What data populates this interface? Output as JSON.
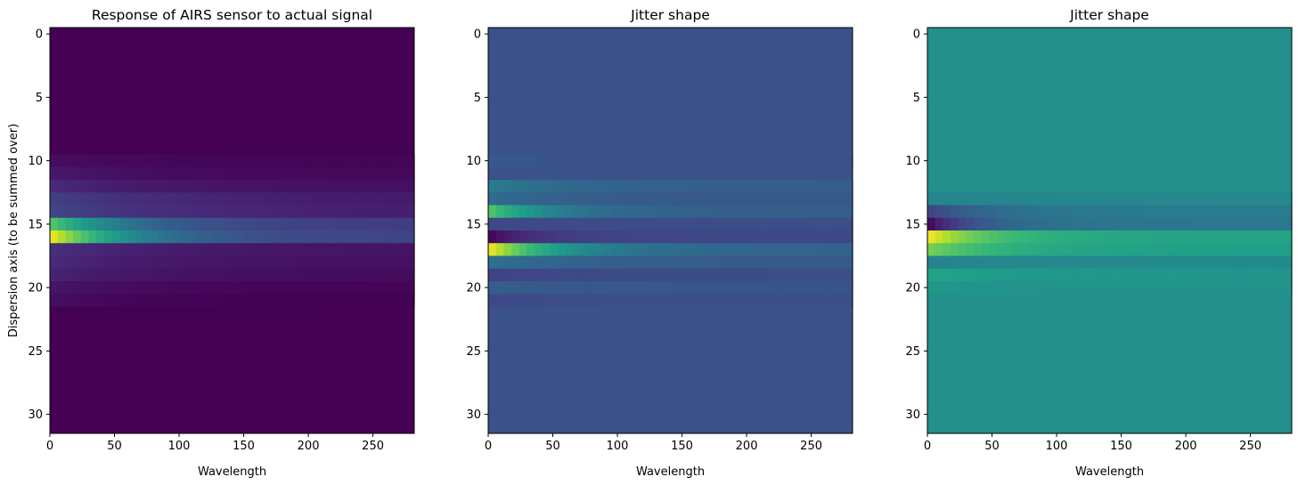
{
  "chart_data": [
    {
      "type": "heatmap",
      "title": "Response of AIRS sensor to actual signal",
      "xlabel": "Wavelength",
      "ylabel": "Dispersion axis (to be summed over)",
      "x_ticks": [
        0,
        50,
        100,
        150,
        200,
        250
      ],
      "y_ticks": [
        0,
        5,
        10,
        15,
        20,
        25,
        30
      ],
      "xlim": [
        0,
        282
      ],
      "ylim": [
        31.5,
        -0.5
      ],
      "rows": 32,
      "colormap": "viridis",
      "background_value": 0.0,
      "bands": [
        {
          "row": 10,
          "peak": 0.04,
          "decay": 60,
          "floor": 0.01
        },
        {
          "row": 11,
          "peak": 0.07,
          "decay": 70,
          "floor": 0.02
        },
        {
          "row": 12,
          "peak": 0.12,
          "decay": 80,
          "floor": 0.04
        },
        {
          "row": 13,
          "peak": 0.2,
          "decay": 90,
          "floor": 0.07
        },
        {
          "row": 14,
          "peak": 0.22,
          "decay": 90,
          "floor": 0.08
        },
        {
          "row": 15,
          "peak": 0.75,
          "decay": 60,
          "floor": 0.18
        },
        {
          "row": 16,
          "peak": 1.0,
          "decay": 60,
          "floor": 0.2
        },
        {
          "row": 17,
          "peak": 0.14,
          "decay": 90,
          "floor": 0.05
        },
        {
          "row": 18,
          "peak": 0.12,
          "decay": 90,
          "floor": 0.04
        },
        {
          "row": 19,
          "peak": 0.1,
          "decay": 80,
          "floor": 0.03
        },
        {
          "row": 20,
          "peak": 0.06,
          "decay": 70,
          "floor": 0.01
        },
        {
          "row": 21,
          "peak": 0.04,
          "decay": 60,
          "floor": 0.0
        }
      ]
    },
    {
      "type": "heatmap",
      "title": "Jitter shape",
      "xlabel": "Wavelength",
      "ylabel": "",
      "x_ticks": [
        0,
        50,
        100,
        150,
        200,
        250
      ],
      "y_ticks": [
        0,
        5,
        10,
        15,
        20,
        25,
        30
      ],
      "xlim": [
        0,
        282
      ],
      "ylim": [
        31.5,
        -0.5
      ],
      "rows": 32,
      "colormap": "viridis",
      "background_value": 0.26,
      "bands": [
        {
          "row": 10,
          "peak": 0.29,
          "decay": 40,
          "floor": 0.26
        },
        {
          "row": 12,
          "peak": 0.42,
          "decay": 60,
          "floor": 0.3
        },
        {
          "row": 13,
          "peak": 0.36,
          "decay": 60,
          "floor": 0.28
        },
        {
          "row": 14,
          "peak": 0.75,
          "decay": 45,
          "floor": 0.3
        },
        {
          "row": 15,
          "peak": 0.22,
          "decay": 60,
          "floor": 0.24
        },
        {
          "row": 16,
          "peak": 0.0,
          "decay": 35,
          "floor": 0.22
        },
        {
          "row": 17,
          "peak": 1.0,
          "decay": 50,
          "floor": 0.32
        },
        {
          "row": 18,
          "peak": 0.38,
          "decay": 60,
          "floor": 0.29
        },
        {
          "row": 19,
          "peak": 0.2,
          "decay": 60,
          "floor": 0.24
        },
        {
          "row": 20,
          "peak": 0.31,
          "decay": 50,
          "floor": 0.27
        },
        {
          "row": 21,
          "peak": 0.22,
          "decay": 40,
          "floor": 0.25
        }
      ]
    },
    {
      "type": "heatmap",
      "title": "Jitter shape",
      "xlabel": "Wavelength",
      "ylabel": "",
      "x_ticks": [
        0,
        50,
        100,
        150,
        200,
        250
      ],
      "y_ticks": [
        0,
        5,
        10,
        15,
        20,
        25,
        30
      ],
      "xlim": [
        0,
        282
      ],
      "ylim": [
        31.5,
        -0.5
      ],
      "rows": 32,
      "colormap": "viridis",
      "background_value": 0.5,
      "bands": [
        {
          "row": 13,
          "peak": 0.45,
          "decay": 60,
          "floor": 0.47
        },
        {
          "row": 14,
          "peak": 0.2,
          "decay": 45,
          "floor": 0.42
        },
        {
          "row": 15,
          "peak": 0.0,
          "decay": 35,
          "floor": 0.4
        },
        {
          "row": 16,
          "peak": 1.0,
          "decay": 45,
          "floor": 0.58
        },
        {
          "row": 17,
          "peak": 0.8,
          "decay": 55,
          "floor": 0.56
        },
        {
          "row": 18,
          "peak": 0.45,
          "decay": 60,
          "floor": 0.48
        },
        {
          "row": 19,
          "peak": 0.58,
          "decay": 60,
          "floor": 0.52
        },
        {
          "row": 20,
          "peak": 0.53,
          "decay": 50,
          "floor": 0.51
        }
      ]
    }
  ]
}
